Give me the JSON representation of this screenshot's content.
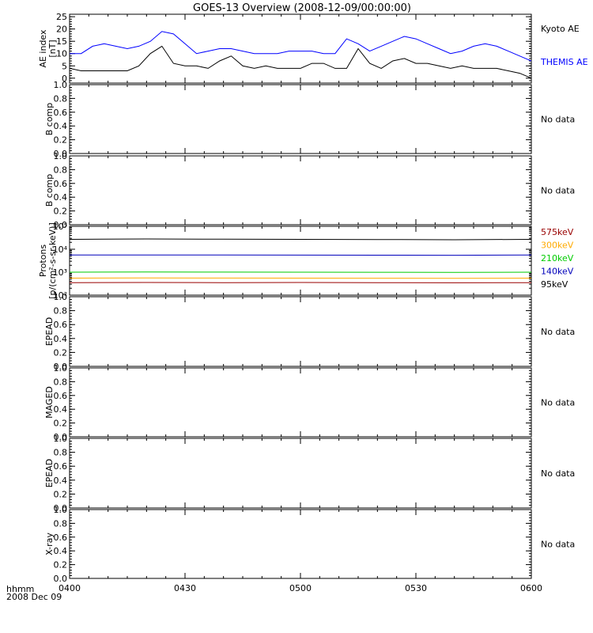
{
  "title": "GOES-13 Overview (2008-12-09/00:00:00)",
  "x_axis": {
    "ticks": [
      "0400",
      "0430",
      "0500",
      "0530",
      "0600"
    ],
    "unit_label": "hhmm",
    "date_label": "2008 Dec 09"
  },
  "colors": {
    "black": "#000000",
    "blue": "#0000ff",
    "maroon": "#990000",
    "orange": "#ffaa00",
    "green": "#00cc00",
    "navy": "#0000bb"
  },
  "chart_data": [
    {
      "type": "line",
      "ylabel": "AE index",
      "yunit": "[nT]",
      "ylim": [
        -2,
        26
      ],
      "yticks": [
        0,
        5,
        10,
        15,
        20,
        25
      ],
      "x": [
        0,
        3,
        6,
        9,
        12,
        15,
        18,
        21,
        24,
        27,
        30,
        33,
        36,
        39,
        42,
        45,
        48,
        51,
        54,
        57,
        60,
        63,
        66,
        69,
        72,
        75,
        78,
        81,
        84,
        87,
        90,
        93,
        96,
        99,
        102,
        105,
        108,
        111,
        114,
        117,
        120
      ],
      "series": [
        {
          "name": "Kyoto AE",
          "color": "#000000",
          "values": [
            4,
            3,
            3,
            3,
            3,
            3,
            5,
            10,
            13,
            6,
            5,
            5,
            4,
            7,
            9,
            5,
            4,
            5,
            4,
            4,
            4,
            6,
            6,
            4,
            4,
            12,
            6,
            4,
            7,
            8,
            6,
            6,
            5,
            4,
            5,
            4,
            4,
            4,
            3,
            2,
            0
          ]
        },
        {
          "name": "THEMIS AE",
          "color": "#0000ff",
          "values": [
            10,
            10,
            13,
            14,
            13,
            12,
            13,
            15,
            19,
            18,
            14,
            10,
            11,
            12,
            12,
            11,
            10,
            10,
            10,
            11,
            11,
            11,
            10,
            10,
            16,
            14,
            11,
            13,
            15,
            17,
            16,
            14,
            12,
            10,
            11,
            13,
            14,
            13,
            11,
            9,
            7
          ]
        }
      ]
    },
    {
      "type": "line",
      "ylabel": "B comp",
      "yticks": [
        "0.0",
        "0.2",
        "0.4",
        "0.6",
        "0.8",
        "1.0"
      ],
      "ylim": [
        0,
        1
      ],
      "message": "No data"
    },
    {
      "type": "line",
      "ylabel": "B comp",
      "yticks": [
        "0.0",
        "0.2",
        "0.4",
        "0.6",
        "0.8",
        "1.0"
      ],
      "ylim": [
        0,
        1
      ],
      "message": "No data"
    },
    {
      "type": "line",
      "ylabel": "Protons",
      "yunit": "[p/(cm²-s-sr-keV)]",
      "yscale": "log",
      "ylim": [
        100,
        100000
      ],
      "yticks": [
        "10²",
        "10³",
        "10⁴",
        "10⁵"
      ],
      "x": [
        0,
        20,
        40,
        60,
        80,
        100,
        120
      ],
      "series": [
        {
          "name": "575keV",
          "color": "#990000",
          "values": [
            350,
            355,
            350,
            355,
            350,
            345,
            350
          ]
        },
        {
          "name": "300keV",
          "color": "#ffaa00",
          "values": [
            550,
            560,
            555,
            550,
            545,
            540,
            550
          ]
        },
        {
          "name": "210keV",
          "color": "#00cc00",
          "values": [
            1000,
            1020,
            1010,
            1000,
            990,
            980,
            1000
          ]
        },
        {
          "name": "140keV",
          "color": "#0000bb",
          "values": [
            5600,
            5650,
            5600,
            5550,
            5500,
            5450,
            5600
          ]
        },
        {
          "name": "95keV",
          "color": "#000000",
          "values": [
            27000,
            28000,
            27500,
            27000,
            26500,
            26000,
            27000
          ]
        }
      ]
    },
    {
      "type": "line",
      "ylabel": "EPEAD",
      "yticks": [
        "0.0",
        "0.2",
        "0.4",
        "0.6",
        "0.8",
        "1.0"
      ],
      "ylim": [
        0,
        1
      ],
      "message": "No data"
    },
    {
      "type": "line",
      "ylabel": "MAGED",
      "yticks": [
        "0.0",
        "0.2",
        "0.4",
        "0.6",
        "0.8",
        "1.0"
      ],
      "ylim": [
        0,
        1
      ],
      "message": "No data"
    },
    {
      "type": "line",
      "ylabel": "EPEAD",
      "yticks": [
        "0.0",
        "0.2",
        "0.4",
        "0.6",
        "0.8",
        "1.0"
      ],
      "ylim": [
        0,
        1
      ],
      "message": "No data"
    },
    {
      "type": "line",
      "ylabel": "X-ray",
      "yticks": [
        "0.0",
        "0.2",
        "0.4",
        "0.6",
        "0.8",
        "1.0"
      ],
      "ylim": [
        0,
        1
      ],
      "message": "No data"
    }
  ]
}
